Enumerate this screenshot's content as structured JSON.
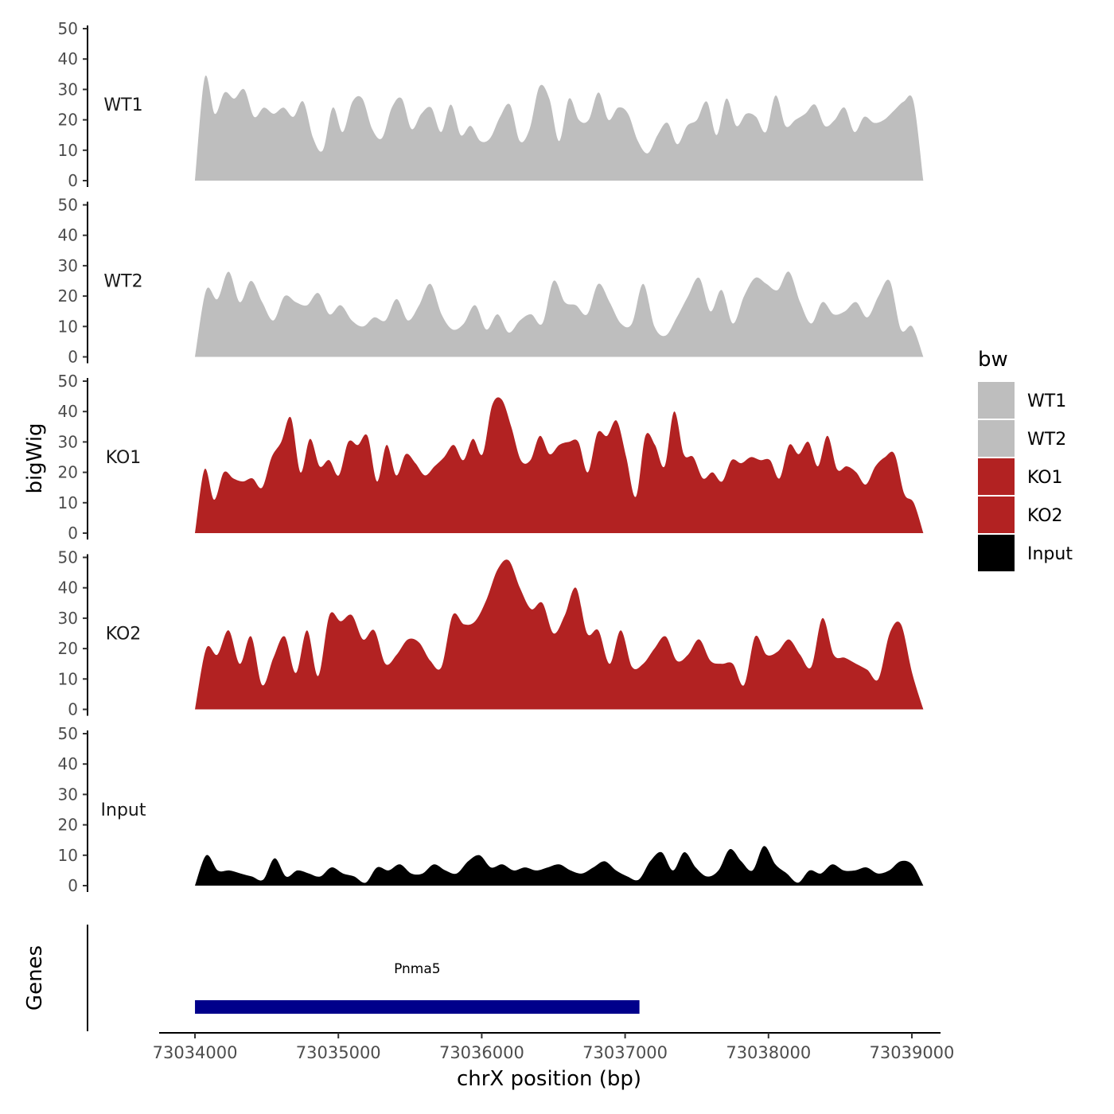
{
  "chart_data": {
    "type": "area",
    "ylabel": "bigWig",
    "xlabel": "chrX position (bp)",
    "xlim": [
      73033750,
      73039200
    ],
    "ylim": [
      0,
      50
    ],
    "y_ticks": [
      0,
      10,
      20,
      30,
      40,
      50
    ],
    "x_ticks": [
      73034000,
      73035000,
      73036000,
      73037000,
      73038000,
      73039000
    ],
    "x_tick_labels": [
      "73034000",
      "73035000",
      "73036000",
      "73037000",
      "73038000",
      "73039000"
    ],
    "x_range": [
      73034000,
      73039080
    ],
    "legend": {
      "title": "bw",
      "position": "right",
      "entries": [
        "WT1",
        "WT2",
        "KO1",
        "KO2",
        "Input"
      ]
    },
    "colors": {
      "WT1": "#bebebe",
      "WT2": "#bebebe",
      "KO1": "#b22222",
      "KO2": "#b22222",
      "Input": "#000000",
      "gene": "#00008b"
    },
    "series": [
      {
        "name": "WT1",
        "values": [
          0,
          34,
          22,
          29,
          27,
          30,
          21,
          24,
          22,
          24,
          21,
          26,
          14,
          10,
          24,
          16,
          26,
          27,
          17,
          14,
          24,
          27,
          17,
          22,
          24,
          16,
          25,
          15,
          18,
          13,
          14,
          21,
          25,
          13,
          17,
          31,
          27,
          13,
          27,
          20,
          20,
          29,
          20,
          24,
          22,
          13,
          9,
          15,
          19,
          12,
          18,
          20,
          26,
          15,
          27,
          18,
          22,
          21,
          16,
          28,
          18,
          20,
          22,
          25,
          18,
          20,
          24,
          16,
          21,
          19,
          20,
          23,
          26,
          26,
          0
        ]
      },
      {
        "name": "WT2",
        "values": [
          0,
          22,
          19,
          28,
          18,
          25,
          18,
          12,
          20,
          18,
          17,
          21,
          14,
          17,
          12,
          10,
          13,
          12,
          19,
          12,
          17,
          24,
          14,
          9,
          11,
          17,
          9,
          14,
          8,
          12,
          14,
          11,
          25,
          18,
          17,
          14,
          24,
          18,
          11,
          11,
          24,
          10,
          7,
          13,
          20,
          26,
          15,
          22,
          11,
          20,
          26,
          24,
          22,
          28,
          18,
          11,
          18,
          14,
          15,
          18,
          13,
          20,
          25,
          9,
          10,
          0
        ]
      },
      {
        "name": "KO1",
        "values": [
          0,
          21,
          11,
          20,
          18,
          17,
          18,
          15,
          25,
          30,
          38,
          20,
          31,
          22,
          24,
          19,
          30,
          29,
          32,
          17,
          29,
          19,
          26,
          23,
          19,
          22,
          25,
          29,
          24,
          31,
          26,
          42,
          44,
          35,
          24,
          24,
          32,
          26,
          29,
          30,
          30,
          20,
          33,
          32,
          37,
          25,
          12,
          32,
          29,
          22,
          40,
          26,
          25,
          18,
          20,
          17,
          24,
          23,
          25,
          24,
          24,
          18,
          29,
          26,
          30,
          22,
          32,
          21,
          22,
          20,
          16,
          22,
          25,
          26,
          13,
          10,
          0
        ]
      },
      {
        "name": "KO2",
        "values": [
          0,
          20,
          18,
          26,
          15,
          24,
          8,
          17,
          24,
          12,
          26,
          11,
          31,
          29,
          31,
          23,
          26,
          15,
          18,
          23,
          22,
          16,
          14,
          31,
          28,
          29,
          36,
          46,
          49,
          40,
          33,
          35,
          25,
          31,
          40,
          25,
          26,
          15,
          26,
          14,
          15,
          20,
          24,
          16,
          18,
          23,
          16,
          15,
          15,
          8,
          24,
          18,
          19,
          23,
          18,
          14,
          30,
          18,
          17,
          15,
          13,
          10,
          25,
          28,
          12,
          0
        ]
      },
      {
        "name": "Input",
        "values": [
          0,
          10,
          5,
          5,
          4,
          3,
          2,
          9,
          3,
          5,
          4,
          3,
          6,
          4,
          3,
          1,
          6,
          5,
          7,
          4,
          4,
          7,
          5,
          4,
          8,
          10,
          6,
          7,
          5,
          6,
          5,
          6,
          7,
          5,
          4,
          6,
          8,
          5,
          3,
          2,
          8,
          11,
          5,
          11,
          6,
          3,
          5,
          12,
          8,
          5,
          13,
          7,
          4,
          1,
          5,
          4,
          7,
          5,
          5,
          6,
          4,
          5,
          8,
          7,
          0
        ]
      }
    ],
    "genes_track": {
      "ylabel": "Genes",
      "genes": [
        {
          "name": "Pnma5",
          "start": 73034000,
          "end": 73037100
        }
      ]
    }
  }
}
